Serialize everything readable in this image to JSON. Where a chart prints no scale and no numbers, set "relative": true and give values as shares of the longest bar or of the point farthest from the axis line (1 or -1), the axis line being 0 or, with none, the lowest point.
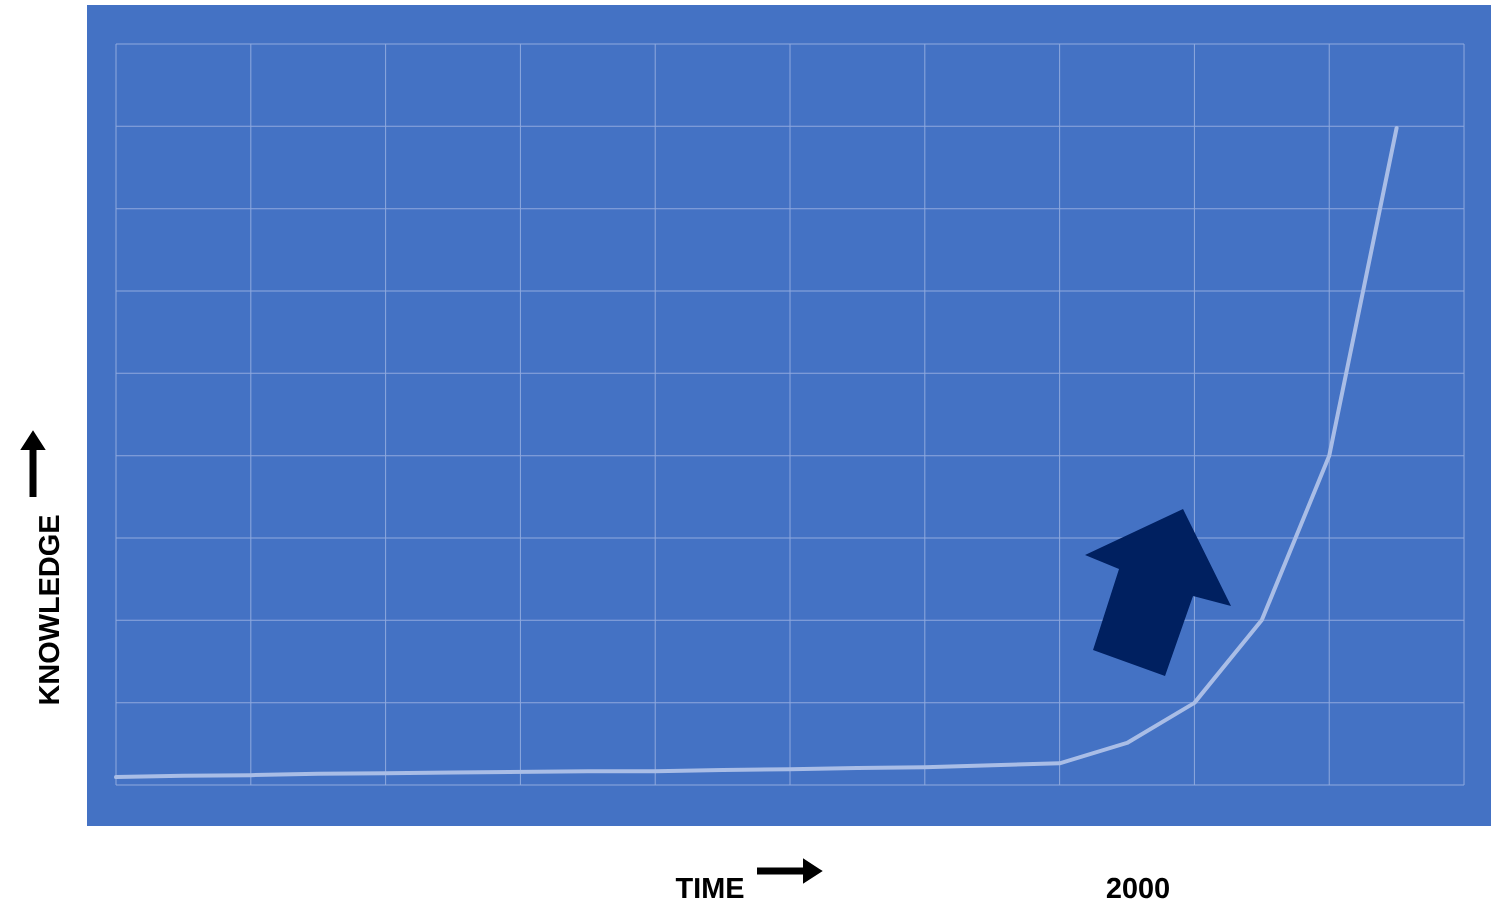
{
  "chart_data": {
    "type": "line",
    "xlabel": "TIME",
    "ylabel": "KNOWLEDGE",
    "relative": true,
    "grid": true,
    "line_style": "solid",
    "color": "#a9bde6",
    "categories": [
      null,
      null,
      null,
      null,
      null,
      null,
      null,
      null,
      null,
      null,
      null,
      null,
      null,
      null,
      null,
      null,
      null,
      null,
      null,
      null,
      null
    ],
    "annotations": [
      "2000"
    ],
    "values": [
      0.012,
      0.014,
      0.015,
      0.017,
      0.018,
      0.019,
      0.02,
      0.021,
      0.021,
      0.023,
      0.024,
      0.026,
      0.027,
      0.03,
      0.033,
      0.064,
      0.125,
      0.251,
      0.501,
      1.0,
      null
    ]
  }
}
